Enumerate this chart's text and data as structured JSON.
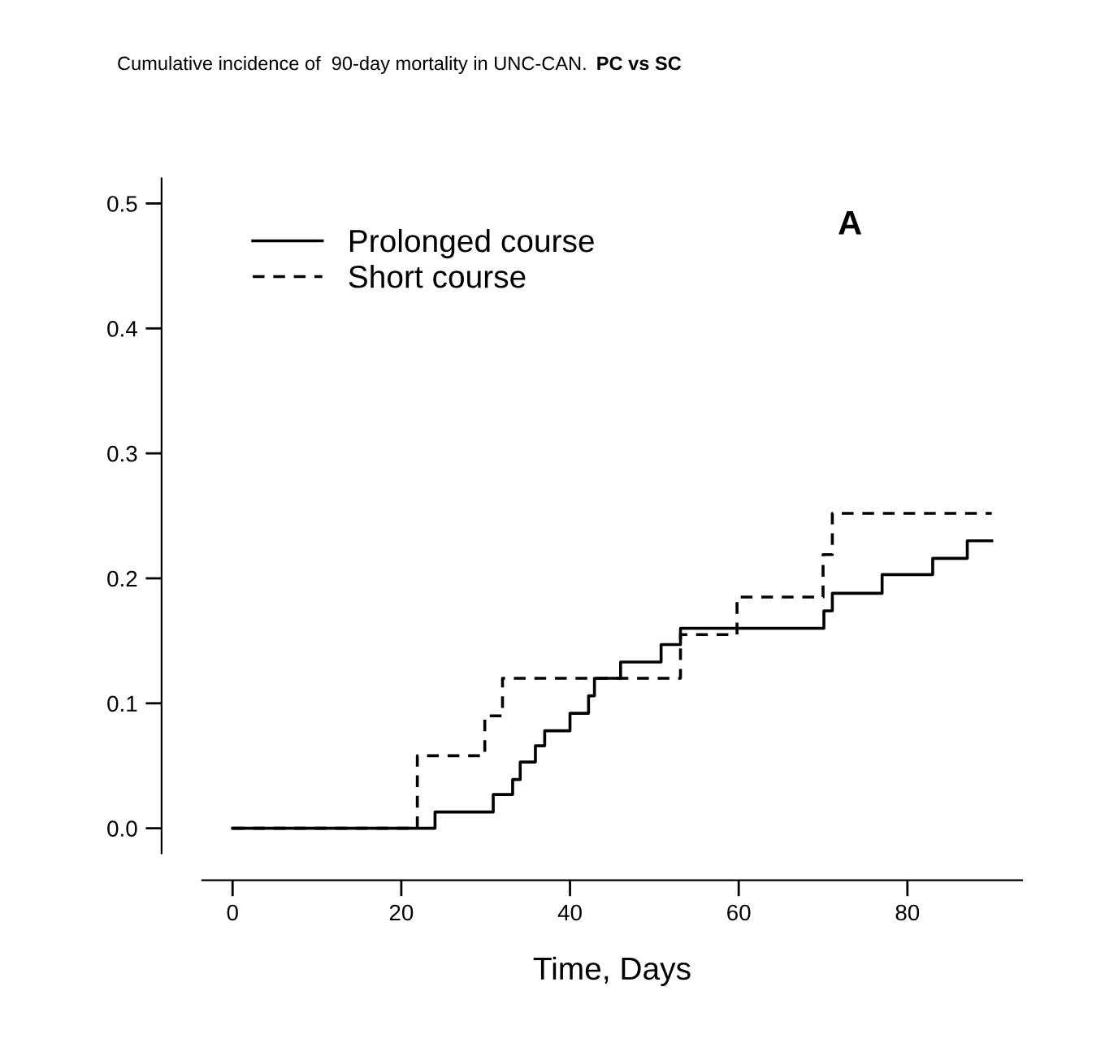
{
  "chart_data": {
    "type": "step",
    "title": "Cumulative incidence of  90-day mortality in UNC-CAN.",
    "subtitle": "PC vs SC",
    "xlabel": "Time, Days",
    "annotations": [
      "A"
    ],
    "series": [
      {
        "name": "Prolonged course",
        "color": "#000000",
        "line_style": "solid",
        "x": [
          0,
          24.0,
          30.9,
          33.2,
          34.1,
          35.9,
          37.0,
          40.0,
          42.2,
          42.9,
          46.0,
          50.8,
          53.1,
          70.1,
          71.1,
          77.0,
          83.0,
          87.1,
          90.0
        ],
        "values": [
          0,
          0.013,
          0.027,
          0.039,
          0.053,
          0.066,
          0.078,
          0.092,
          0.106,
          0.12,
          0.133,
          0.147,
          0.16,
          0.174,
          0.188,
          0.203,
          0.216,
          0.23,
          0.23
        ]
      },
      {
        "name": "Short course",
        "color": "#000000",
        "line_style": "dashed",
        "x": [
          0,
          21.9,
          29.9,
          32.0,
          53.1,
          59.8,
          70.0,
          71.1,
          90.0
        ],
        "values": [
          0,
          0.058,
          0.09,
          0.12,
          0.155,
          0.185,
          0.219,
          0.252,
          0.252
        ]
      }
    ],
    "xlim": [
      -3.6,
      93.6
    ],
    "ylim": [
      -0.02,
      0.52
    ],
    "xticks": [
      0,
      20,
      40,
      60,
      80
    ],
    "yticks": [
      {
        "value": 0,
        "label": "0.0"
      },
      0.1,
      0.2,
      0.3,
      0.4,
      0.5
    ],
    "legend": "top left",
    "grid": false
  }
}
